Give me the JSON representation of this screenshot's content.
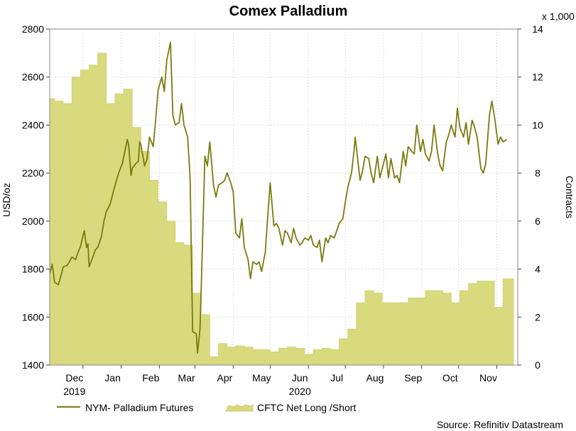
{
  "chart_data": {
    "type": "line",
    "title": "Comex Palladium",
    "ylabel": "USD/oz",
    "y2label": "Contracts",
    "y2_multiplier_label": "x 1,000",
    "ylim": [
      1400,
      2800
    ],
    "y2lim": [
      0,
      14
    ],
    "yticks": [
      "1400",
      "1600",
      "1800",
      "2000",
      "2200",
      "2400",
      "2600",
      "2800"
    ],
    "y2ticks": [
      "0",
      "2",
      "4",
      "6",
      "8",
      "10",
      "12",
      "14"
    ],
    "x_start": "2019-11-04",
    "x_end": "2020-11-18",
    "month_ticks": [
      {
        "label": "Dec",
        "date": "2019-12-01"
      },
      {
        "label": "Jan",
        "date": "2020-01-01"
      },
      {
        "label": "Feb",
        "date": "2020-02-01"
      },
      {
        "label": "Mar",
        "date": "2020-03-01"
      },
      {
        "label": "Apr",
        "date": "2020-04-01"
      },
      {
        "label": "May",
        "date": "2020-05-01"
      },
      {
        "label": "Jun",
        "date": "2020-06-01"
      },
      {
        "label": "Jul",
        "date": "2020-07-01"
      },
      {
        "label": "Aug",
        "date": "2020-08-01"
      },
      {
        "label": "Sep",
        "date": "2020-09-01"
      },
      {
        "label": "Oct",
        "date": "2020-10-01"
      },
      {
        "label": "Nov",
        "date": "2020-11-01"
      }
    ],
    "year_labels": [
      {
        "label": "2019",
        "date": "2019-12-01"
      },
      {
        "label": "2020",
        "date": "2020-06-01"
      }
    ],
    "grid": true,
    "legend_position": "bottom-left",
    "source": "Source: Refinitiv Datastream",
    "series": [
      {
        "name": "NYM- Palladium Futures",
        "axis": "left",
        "style": "line",
        "color": "#7a7a10",
        "points": [
          [
            "2019-11-04",
            1780
          ],
          [
            "2019-11-06",
            1820
          ],
          [
            "2019-11-08",
            1745
          ],
          [
            "2019-11-11",
            1735
          ],
          [
            "2019-11-13",
            1770
          ],
          [
            "2019-11-15",
            1810
          ],
          [
            "2019-11-18",
            1815
          ],
          [
            "2019-11-20",
            1830
          ],
          [
            "2019-11-22",
            1850
          ],
          [
            "2019-11-25",
            1840
          ],
          [
            "2019-11-27",
            1870
          ],
          [
            "2019-11-29",
            1895
          ],
          [
            "2019-12-02",
            1960
          ],
          [
            "2019-12-04",
            1890
          ],
          [
            "2019-12-05",
            1905
          ],
          [
            "2019-12-06",
            1810
          ],
          [
            "2019-12-09",
            1850
          ],
          [
            "2019-12-11",
            1880
          ],
          [
            "2019-12-13",
            1890
          ],
          [
            "2019-12-16",
            1935
          ],
          [
            "2019-12-18",
            2000
          ],
          [
            "2019-12-20",
            2040
          ],
          [
            "2019-12-23",
            2070
          ],
          [
            "2019-12-26",
            2130
          ],
          [
            "2019-12-30",
            2200
          ],
          [
            "2020-01-02",
            2240
          ],
          [
            "2020-01-06",
            2340
          ],
          [
            "2020-01-07",
            2320
          ],
          [
            "2020-01-09",
            2190
          ],
          [
            "2020-01-10",
            2220
          ],
          [
            "2020-01-13",
            2240
          ],
          [
            "2020-01-15",
            2250
          ],
          [
            "2020-01-16",
            2330
          ],
          [
            "2020-01-17",
            2320
          ],
          [
            "2020-01-20",
            2230
          ],
          [
            "2020-01-22",
            2260
          ],
          [
            "2020-01-24",
            2350
          ],
          [
            "2020-01-27",
            2310
          ],
          [
            "2020-01-29",
            2420
          ],
          [
            "2020-01-31",
            2545
          ],
          [
            "2020-02-03",
            2600
          ],
          [
            "2020-02-05",
            2540
          ],
          [
            "2020-02-07",
            2670
          ],
          [
            "2020-02-10",
            2745
          ],
          [
            "2020-02-12",
            2440
          ],
          [
            "2020-02-14",
            2400
          ],
          [
            "2020-02-17",
            2410
          ],
          [
            "2020-02-19",
            2490
          ],
          [
            "2020-02-21",
            2400
          ],
          [
            "2020-02-24",
            2350
          ],
          [
            "2020-02-26",
            2180
          ],
          [
            "2020-02-28",
            1540
          ],
          [
            "2020-03-02",
            1530
          ],
          [
            "2020-03-03",
            1450
          ],
          [
            "2020-03-05",
            1550
          ],
          [
            "2020-03-06",
            1720
          ],
          [
            "2020-03-09",
            2270
          ],
          [
            "2020-03-11",
            2230
          ],
          [
            "2020-03-13",
            2330
          ],
          [
            "2020-03-16",
            2150
          ],
          [
            "2020-03-18",
            2100
          ],
          [
            "2020-03-20",
            2150
          ],
          [
            "2020-03-23",
            2160
          ],
          [
            "2020-03-25",
            2170
          ],
          [
            "2020-03-27",
            2200
          ],
          [
            "2020-03-30",
            2160
          ],
          [
            "2020-04-01",
            2120
          ],
          [
            "2020-04-03",
            1950
          ],
          [
            "2020-04-06",
            1930
          ],
          [
            "2020-04-08",
            2010
          ],
          [
            "2020-04-10",
            1890
          ],
          [
            "2020-04-13",
            1840
          ],
          [
            "2020-04-15",
            1760
          ],
          [
            "2020-04-17",
            1830
          ],
          [
            "2020-04-20",
            1820
          ],
          [
            "2020-04-22",
            1830
          ],
          [
            "2020-04-24",
            1790
          ],
          [
            "2020-04-27",
            1870
          ],
          [
            "2020-04-29",
            2020
          ],
          [
            "2020-05-01",
            2160
          ],
          [
            "2020-05-04",
            1980
          ],
          [
            "2020-05-06",
            1990
          ],
          [
            "2020-05-08",
            1970
          ],
          [
            "2020-05-11",
            1900
          ],
          [
            "2020-05-13",
            1960
          ],
          [
            "2020-05-15",
            1950
          ],
          [
            "2020-05-18",
            1910
          ],
          [
            "2020-05-20",
            1970
          ],
          [
            "2020-05-22",
            1930
          ],
          [
            "2020-05-25",
            1900
          ],
          [
            "2020-05-27",
            1910
          ],
          [
            "2020-05-29",
            1930
          ],
          [
            "2020-06-01",
            1920
          ],
          [
            "2020-06-03",
            1940
          ],
          [
            "2020-06-05",
            1900
          ],
          [
            "2020-06-08",
            1890
          ],
          [
            "2020-06-10",
            1920
          ],
          [
            "2020-06-12",
            1830
          ],
          [
            "2020-06-15",
            1930
          ],
          [
            "2020-06-17",
            1910
          ],
          [
            "2020-06-19",
            1940
          ],
          [
            "2020-06-22",
            1930
          ],
          [
            "2020-06-24",
            1960
          ],
          [
            "2020-06-26",
            1990
          ],
          [
            "2020-06-29",
            2010
          ],
          [
            "2020-07-01",
            2080
          ],
          [
            "2020-07-03",
            2140
          ],
          [
            "2020-07-06",
            2200
          ],
          [
            "2020-07-08",
            2290
          ],
          [
            "2020-07-09",
            2350
          ],
          [
            "2020-07-13",
            2170
          ],
          [
            "2020-07-15",
            2210
          ],
          [
            "2020-07-17",
            2270
          ],
          [
            "2020-07-20",
            2260
          ],
          [
            "2020-07-22",
            2200
          ],
          [
            "2020-07-24",
            2160
          ],
          [
            "2020-07-27",
            2270
          ],
          [
            "2020-07-29",
            2180
          ],
          [
            "2020-07-31",
            2220
          ],
          [
            "2020-08-03",
            2280
          ],
          [
            "2020-08-05",
            2180
          ],
          [
            "2020-08-07",
            2260
          ],
          [
            "2020-08-10",
            2180
          ],
          [
            "2020-08-12",
            2190
          ],
          [
            "2020-08-14",
            2160
          ],
          [
            "2020-08-17",
            2290
          ],
          [
            "2020-08-19",
            2230
          ],
          [
            "2020-08-21",
            2310
          ],
          [
            "2020-08-24",
            2290
          ],
          [
            "2020-08-26",
            2280
          ],
          [
            "2020-08-28",
            2400
          ],
          [
            "2020-08-31",
            2290
          ],
          [
            "2020-09-02",
            2340
          ],
          [
            "2020-09-04",
            2280
          ],
          [
            "2020-09-07",
            2250
          ],
          [
            "2020-09-09",
            2290
          ],
          [
            "2020-09-11",
            2400
          ],
          [
            "2020-09-14",
            2280
          ],
          [
            "2020-09-16",
            2230
          ],
          [
            "2020-09-18",
            2210
          ],
          [
            "2020-09-21",
            2330
          ],
          [
            "2020-09-23",
            2360
          ],
          [
            "2020-09-25",
            2400
          ],
          [
            "2020-09-28",
            2350
          ],
          [
            "2020-09-30",
            2470
          ],
          [
            "2020-10-02",
            2390
          ],
          [
            "2020-10-05",
            2350
          ],
          [
            "2020-10-07",
            2410
          ],
          [
            "2020-10-09",
            2320
          ],
          [
            "2020-10-12",
            2420
          ],
          [
            "2020-10-14",
            2390
          ],
          [
            "2020-10-16",
            2350
          ],
          [
            "2020-10-19",
            2220
          ],
          [
            "2020-10-21",
            2200
          ],
          [
            "2020-10-23",
            2240
          ],
          [
            "2020-10-26",
            2440
          ],
          [
            "2020-10-28",
            2500
          ],
          [
            "2020-10-30",
            2440
          ],
          [
            "2020-11-02",
            2320
          ],
          [
            "2020-11-04",
            2350
          ],
          [
            "2020-11-06",
            2330
          ],
          [
            "2020-11-09",
            2340
          ]
        ]
      },
      {
        "name": "CFTC Net Long /Short",
        "axis": "right",
        "style": "area",
        "color": "#d9d97e",
        "points": [
          [
            "2019-11-04",
            11.1
          ],
          [
            "2019-11-08",
            11.0
          ],
          [
            "2019-11-15",
            10.9
          ],
          [
            "2019-11-22",
            12.0
          ],
          [
            "2019-11-29",
            12.3
          ],
          [
            "2019-12-06",
            12.5
          ],
          [
            "2019-12-13",
            13.0
          ],
          [
            "2019-12-20",
            10.9
          ],
          [
            "2019-12-27",
            11.3
          ],
          [
            "2020-01-03",
            11.5
          ],
          [
            "2020-01-10",
            9.9
          ],
          [
            "2020-01-17",
            8.9
          ],
          [
            "2020-01-24",
            7.7
          ],
          [
            "2020-01-31",
            6.8
          ],
          [
            "2020-02-07",
            6.0
          ],
          [
            "2020-02-14",
            5.1
          ],
          [
            "2020-02-21",
            5.0
          ],
          [
            "2020-02-28",
            3.0
          ],
          [
            "2020-03-06",
            2.1
          ],
          [
            "2020-03-13",
            0.35
          ],
          [
            "2020-03-20",
            0.9
          ],
          [
            "2020-03-27",
            0.75
          ],
          [
            "2020-04-03",
            0.8
          ],
          [
            "2020-04-10",
            0.75
          ],
          [
            "2020-04-17",
            0.65
          ],
          [
            "2020-04-24",
            0.65
          ],
          [
            "2020-05-01",
            0.55
          ],
          [
            "2020-05-08",
            0.7
          ],
          [
            "2020-05-15",
            0.75
          ],
          [
            "2020-05-22",
            0.7
          ],
          [
            "2020-05-29",
            0.45
          ],
          [
            "2020-06-05",
            0.65
          ],
          [
            "2020-06-12",
            0.7
          ],
          [
            "2020-06-19",
            0.65
          ],
          [
            "2020-06-26",
            1.1
          ],
          [
            "2020-07-03",
            1.5
          ],
          [
            "2020-07-10",
            2.6
          ],
          [
            "2020-07-17",
            3.1
          ],
          [
            "2020-07-24",
            3.0
          ],
          [
            "2020-07-31",
            2.6
          ],
          [
            "2020-08-07",
            2.6
          ],
          [
            "2020-08-14",
            2.6
          ],
          [
            "2020-08-21",
            2.8
          ],
          [
            "2020-08-28",
            2.8
          ],
          [
            "2020-09-04",
            3.1
          ],
          [
            "2020-09-11",
            3.1
          ],
          [
            "2020-09-18",
            3.0
          ],
          [
            "2020-09-25",
            2.6
          ],
          [
            "2020-10-02",
            3.1
          ],
          [
            "2020-10-09",
            3.4
          ],
          [
            "2020-10-16",
            3.5
          ],
          [
            "2020-10-23",
            3.5
          ],
          [
            "2020-10-30",
            2.4
          ],
          [
            "2020-11-06",
            3.6
          ],
          [
            "2020-11-13",
            3.6
          ]
        ]
      }
    ]
  }
}
